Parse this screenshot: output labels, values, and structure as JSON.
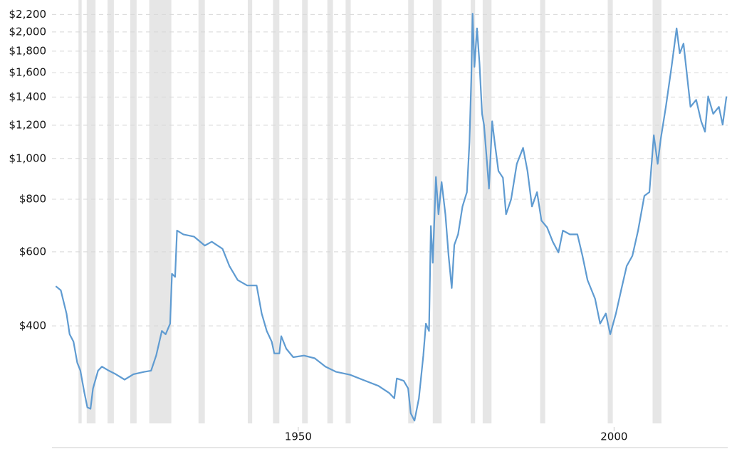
{
  "chart_data": {
    "type": "line",
    "log_y": true,
    "grid": true,
    "xlim": [
      1911,
      2018
    ],
    "xticks": [
      1950,
      2000
    ],
    "ylim": [
      230,
      2300
    ],
    "yticks": [
      {
        "value": 400,
        "label": "$400"
      },
      {
        "value": 600,
        "label": "$600"
      },
      {
        "value": 800,
        "label": "$800"
      },
      {
        "value": 1000,
        "label": "$1,000"
      },
      {
        "value": 1200,
        "label": "$1,200"
      },
      {
        "value": 1400,
        "label": "$1,400"
      },
      {
        "value": 1600,
        "label": "$1,600"
      },
      {
        "value": 1800,
        "label": "$1,800"
      },
      {
        "value": 2000,
        "label": "$2,000"
      },
      {
        "value": 2200,
        "label": "$2,200"
      }
    ],
    "band_color": "#e6e6e6",
    "bands": [
      [
        1915.2,
        1915.7
      ],
      [
        1916.5,
        1917.9
      ],
      [
        1919.8,
        1920.8
      ],
      [
        1923.4,
        1924.4
      ],
      [
        1926.4,
        1929.9
      ],
      [
        1934.2,
        1935.2
      ],
      [
        1942,
        1942.7
      ],
      [
        1946,
        1947
      ],
      [
        1950.6,
        1951.5
      ],
      [
        1954.6,
        1955.5
      ],
      [
        1957.5,
        1958.3
      ],
      [
        1967.4,
        1968.3
      ],
      [
        1971.3,
        1972.7
      ],
      [
        1977.3,
        1978
      ],
      [
        1979.2,
        1980.6
      ],
      [
        1988.3,
        1989.1
      ],
      [
        1999,
        1999.8
      ],
      [
        2006.1,
        2007.5
      ]
    ],
    "series": [
      {
        "color": "#5f9bd1",
        "x": [
          1911.6,
          1912.4,
          1913.3,
          1913.8,
          1914.4,
          1915,
          1915.5,
          1916.1,
          1916.6,
          1917.1,
          1917.5,
          1918.3,
          1918.9,
          1920,
          1921.1,
          1922.5,
          1923.9,
          1925.6,
          1926.7,
          1927.5,
          1928.4,
          1929,
          1929.7,
          1930,
          1930.5,
          1930.8,
          1931.8,
          1933.5,
          1935.2,
          1936.3,
          1938,
          1939.1,
          1940.4,
          1941.9,
          1943.4,
          1944.2,
          1945,
          1945.8,
          1946.2,
          1947,
          1947.3,
          1948.1,
          1949.2,
          1950.9,
          1952.6,
          1954.3,
          1956,
          1958.2,
          1960.4,
          1962.7,
          1964.4,
          1965.2,
          1965.6,
          1966.7,
          1967.4,
          1967.8,
          1968.4,
          1969.1,
          1969.8,
          1970.2,
          1970.7,
          1971,
          1971.3,
          1971.8,
          1972.2,
          1972.7,
          1973.3,
          1973.8,
          1974.3,
          1974.7,
          1975.3,
          1976,
          1976.7,
          1977.1,
          1977.4,
          1977.6,
          1977.9,
          1978.3,
          1978.7,
          1979.1,
          1979.4,
          1979.9,
          1980.2,
          1980.7,
          1981.1,
          1981.7,
          1982.4,
          1982.9,
          1983.7,
          1984.6,
          1985.6,
          1986.3,
          1987,
          1987.8,
          1988.5,
          1989.4,
          1990.3,
          1991.2,
          1991.9,
          1993,
          1994.2,
          1995,
          1995.8,
          1997,
          1997.8,
          1998.7,
          1999.4,
          2000.3,
          2001.2,
          2002,
          2002.9,
          2003.8,
          2004.8,
          2005.6,
          2006.3,
          2006.9,
          2007.4,
          2008.2,
          2009.1,
          2009.9,
          2010.4,
          2011,
          2011.6,
          2012.1,
          2013,
          2013.8,
          2014.4,
          2014.9,
          2015.7,
          2016.6,
          2017.2,
          2017.8
        ],
        "values": [
          497,
          486,
          428,
          382,
          367,
          327,
          313,
          279,
          256,
          254,
          284,
          313,
          320,
          313,
          307,
          298,
          307,
          311,
          313,
          340,
          389,
          382,
          405,
          532,
          523,
          674,
          660,
          652,
          621,
          634,
          610,
          555,
          514,
          499,
          499,
          428,
          389,
          367,
          344,
          344,
          378,
          353,
          337,
          340,
          335,
          320,
          311,
          306,
          297,
          288,
          277,
          269,
          300,
          296,
          284,
          248,
          238,
          269,
          340,
          405,
          389,
          691,
          565,
          904,
          737,
          879,
          737,
          587,
          492,
          623,
          660,
          769,
          832,
          1094,
          1556,
          2210,
          1652,
          2040,
          1684,
          1277,
          1203,
          971,
          848,
          1226,
          1094,
          934,
          900,
          737,
          800,
          971,
          1060,
          934,
          769,
          832,
          712,
          686,
          634,
          598,
          674,
          660,
          660,
          587,
          514,
          464,
          405,
          428,
          382,
          428,
          492,
          555,
          587,
          674,
          815,
          832,
          1136,
          971,
          1115,
          1327,
          1652,
          2040,
          1779,
          1876,
          1556,
          1327,
          1379,
          1226,
          1158,
          1405,
          1277,
          1327,
          1203,
          1405
        ]
      }
    ]
  }
}
